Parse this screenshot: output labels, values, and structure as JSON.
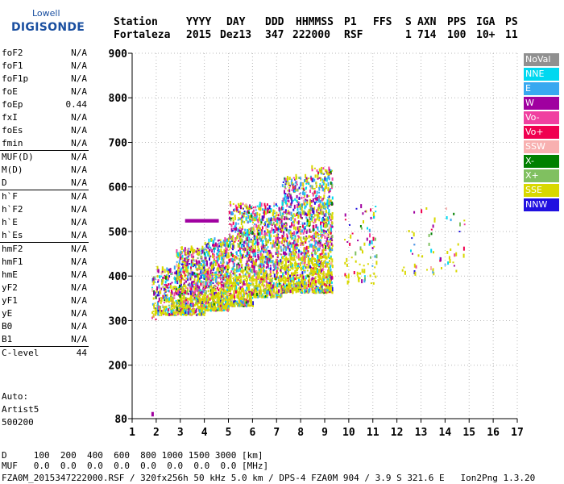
{
  "logo": {
    "line1": "Lowell",
    "line2": "DIGISONDE"
  },
  "header": {
    "labels": [
      "Station",
      "YYYY",
      "DAY",
      "DDD",
      "HHMMSS",
      "P1",
      "FFS",
      "S",
      "AXN",
      "PPS",
      "IGA",
      "PS"
    ],
    "values": [
      "Fortaleza",
      "2015",
      "Dez13",
      "347",
      "222000",
      "RSF",
      "1",
      "714",
      "100",
      "10+",
      "11"
    ]
  },
  "params": {
    "group1": [
      {
        "name": "foF2",
        "value": "N/A"
      },
      {
        "name": "foF1",
        "value": "N/A"
      },
      {
        "name": "foF1p",
        "value": "N/A"
      },
      {
        "name": "foE",
        "value": "N/A"
      },
      {
        "name": "foEp",
        "value": "0.44"
      },
      {
        "name": "fxI",
        "value": "N/A"
      },
      {
        "name": "foEs",
        "value": "N/A"
      },
      {
        "name": "fmin",
        "value": "N/A"
      }
    ],
    "group2": [
      {
        "name": "MUF(D)",
        "value": "N/A"
      },
      {
        "name": "M(D)",
        "value": "N/A"
      },
      {
        "name": "D",
        "value": "N/A"
      }
    ],
    "group3": [
      {
        "name": "h`F",
        "value": "N/A"
      },
      {
        "name": "h`F2",
        "value": "N/A"
      },
      {
        "name": "h`E",
        "value": "N/A"
      },
      {
        "name": "h`Es",
        "value": "N/A"
      }
    ],
    "group4": [
      {
        "name": "hmF2",
        "value": "N/A"
      },
      {
        "name": "hmF1",
        "value": "N/A"
      },
      {
        "name": "hmE",
        "value": "N/A"
      },
      {
        "name": "yF2",
        "value": "N/A"
      },
      {
        "name": "yF1",
        "value": "N/A"
      },
      {
        "name": "yE",
        "value": "N/A"
      },
      {
        "name": "B0",
        "value": "N/A"
      },
      {
        "name": "B1",
        "value": "N/A"
      }
    ],
    "clevel": {
      "name": "C-level",
      "value": "44"
    }
  },
  "notes": [
    "Auto:",
    "Artist5",
    "500200"
  ],
  "footer": {
    "d_row": "D     100  200  400  600  800 1000 1500 3000 [km]",
    "muf_row": "MUF   0.0  0.0  0.0  0.0  0.0  0.0  0.0  0.0 [MHz]",
    "file_row": "FZA0M_2015347222000.RSF / 320fx256h 50 kHz 5.0 km / DPS-4 FZA0M 904 / 3.9 S 321.6 E   Ion2Png 1.3.20"
  },
  "chart_data": {
    "type": "scatter",
    "xlim": [
      1,
      17
    ],
    "ylim": [
      80,
      900
    ],
    "xticks": [
      1,
      2,
      3,
      4,
      5,
      6,
      7,
      8,
      9,
      10,
      11,
      12,
      13,
      14,
      15,
      16,
      17
    ],
    "yticks": [
      80,
      200,
      300,
      400,
      500,
      600,
      700,
      800,
      900
    ],
    "grid": true,
    "legend_position": "right",
    "legend": [
      {
        "name": "NoVal",
        "color": "#909090"
      },
      {
        "name": "NNE",
        "color": "#00d8f0"
      },
      {
        "name": "E",
        "color": "#38a8f0"
      },
      {
        "name": "W",
        "color": "#a000a0"
      },
      {
        "name": "Vo-",
        "color": "#f040a0"
      },
      {
        "name": "Vo+",
        "color": "#f00050"
      },
      {
        "name": "SSW",
        "color": "#f8b0b0"
      },
      {
        "name": "X-",
        "color": "#008000"
      },
      {
        "name": "X+",
        "color": "#80c060"
      },
      {
        "name": "SSE",
        "color": "#d8d800"
      },
      {
        "name": "NNW",
        "color": "#2010e0"
      }
    ],
    "clusters": [
      {
        "x": [
          1.8,
          2.0
        ],
        "y": [
          300,
          400
        ],
        "count": 40
      },
      {
        "x": [
          2.0,
          2.8
        ],
        "y": [
          310,
          420
        ],
        "count": 220
      },
      {
        "x": [
          2.8,
          4.0
        ],
        "y": [
          310,
          460
        ],
        "count": 700
      },
      {
        "x": [
          4.0,
          5.0
        ],
        "y": [
          320,
          480
        ],
        "count": 650
      },
      {
        "x": [
          5.0,
          6.0
        ],
        "y": [
          330,
          560
        ],
        "count": 650
      },
      {
        "x": [
          6.0,
          7.2
        ],
        "y": [
          350,
          560
        ],
        "count": 700
      },
      {
        "x": [
          7.2,
          8.4
        ],
        "y": [
          360,
          620
        ],
        "count": 800
      },
      {
        "x": [
          8.4,
          9.3
        ],
        "y": [
          360,
          640
        ],
        "count": 700
      },
      {
        "x": [
          9.8,
          11.2
        ],
        "y": [
          380,
          560
        ],
        "count": 80
      },
      {
        "x": [
          12.2,
          14.8
        ],
        "y": [
          400,
          550
        ],
        "count": 60
      }
    ],
    "features": [
      {
        "label": "W band",
        "x": [
          3.2,
          4.6
        ],
        "y": [
          520,
          528
        ],
        "color": "#a000a0"
      },
      {
        "label": "low W",
        "x": [
          1.8,
          1.9
        ],
        "y": [
          85,
          95
        ],
        "color": "#a000a0"
      }
    ]
  }
}
